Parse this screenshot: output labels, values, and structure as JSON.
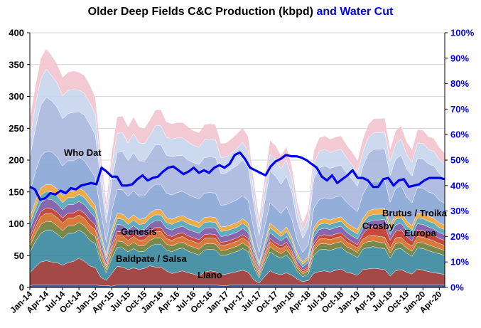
{
  "chart_data": {
    "type": "area",
    "title": "Older Deep Fields C&C Production (kbpd)",
    "title_suffix": "and Water Cut",
    "x_tick_labels": [
      "Jan-14",
      "Apr-14",
      "Jul-14",
      "Oct-14",
      "Jan-15",
      "Apr-15",
      "Jul-15",
      "Oct-15",
      "Jan-16",
      "Apr-16",
      "Jul-16",
      "Oct-16",
      "Jan-17",
      "Apr-17",
      "Jul-17",
      "Oct-17",
      "Jan-18",
      "Apr-18",
      "Jul-18",
      "Oct-18",
      "Jan-19",
      "Apr-19",
      "Jul-19",
      "Oct-19",
      "Jan-20",
      "Apr-20"
    ],
    "left_axis": {
      "ylim": [
        0,
        400
      ],
      "ticks": [
        0,
        50,
        100,
        150,
        200,
        250,
        300,
        350,
        400
      ]
    },
    "right_axis": {
      "ylim": [
        0,
        100
      ],
      "ticks": [
        "0%",
        "10%",
        "20%",
        "30%",
        "40%",
        "50%",
        "60%",
        "70%",
        "80%",
        "90%",
        "100%"
      ],
      "color": "#0000ee"
    },
    "grid": true,
    "stack_order_note": "bottom to top",
    "series": [
      {
        "name": "",
        "color": "#2e4a8c",
        "values": [
          3,
          4,
          4,
          4,
          4,
          4,
          4,
          4,
          4,
          4,
          4,
          4,
          4,
          3,
          3,
          2,
          4,
          4,
          4,
          4,
          4,
          4,
          4,
          4,
          4,
          4,
          4,
          4,
          4,
          4,
          4,
          4,
          4,
          4,
          4,
          3,
          3,
          4,
          4,
          4,
          4,
          4,
          4,
          4,
          4,
          4,
          4,
          4,
          4,
          4,
          4,
          4,
          4,
          4,
          4,
          4,
          4,
          4,
          4,
          4,
          4,
          4,
          4,
          4,
          4,
          4,
          4,
          4,
          4,
          4,
          4,
          4,
          4,
          4,
          4,
          4,
          4
        ]
      },
      {
        "name": "Llano",
        "color": "#9b3b38",
        "values": [
          20,
          28,
          36,
          38,
          36,
          35,
          31,
          35,
          37,
          42,
          37,
          30,
          27,
          13,
          8,
          20,
          29,
          28,
          24,
          27,
          24,
          26,
          30,
          28,
          28,
          22,
          18,
          20,
          22,
          19,
          17,
          14,
          20,
          22,
          21,
          17,
          18,
          19,
          21,
          23,
          20,
          8,
          3,
          13,
          22,
          18,
          16,
          19,
          15,
          9,
          5,
          7,
          18,
          21,
          22,
          20,
          23,
          25,
          20,
          18,
          15,
          24,
          25,
          26,
          25,
          24,
          14,
          22,
          24,
          20,
          17,
          25,
          23,
          21,
          19,
          18,
          16
        ]
      },
      {
        "name": "Baldpate / Salsa",
        "color": "#3d8aa0",
        "values": [
          32,
          40,
          45,
          48,
          50,
          45,
          42,
          46,
          44,
          44,
          44,
          40,
          38,
          25,
          12,
          24,
          30,
          30,
          28,
          30,
          28,
          27,
          30,
          36,
          36,
          33,
          34,
          36,
          36,
          34,
          33,
          33,
          35,
          34,
          34,
          30,
          30,
          31,
          32,
          34,
          32,
          20,
          8,
          20,
          30,
          28,
          26,
          28,
          22,
          12,
          8,
          10,
          28,
          34,
          34,
          34,
          34,
          34,
          32,
          30,
          28,
          32,
          34,
          34,
          33,
          33,
          28,
          34,
          33,
          30,
          28,
          33,
          34,
          33,
          32,
          31,
          30
        ]
      },
      {
        "name": "Genesis",
        "color": "#6e7f3a",
        "values": [
          10,
          12,
          14,
          14,
          13,
          13,
          12,
          12,
          12,
          12,
          12,
          12,
          11,
          8,
          5,
          8,
          10,
          10,
          9,
          10,
          9,
          9,
          10,
          10,
          10,
          9,
          9,
          9,
          9,
          9,
          9,
          9,
          9,
          9,
          9,
          8,
          8,
          8,
          8,
          9,
          8,
          6,
          4,
          6,
          8,
          8,
          7,
          8,
          7,
          5,
          4,
          5,
          8,
          9,
          9,
          9,
          9,
          9,
          8,
          8,
          8,
          8,
          9,
          9,
          9,
          9,
          8,
          9,
          9,
          8,
          8,
          9,
          9,
          9,
          9,
          8,
          8
        ]
      },
      {
        "name": "Europa",
        "color": "#d4702c",
        "values": [
          8,
          10,
          12,
          13,
          13,
          13,
          12,
          12,
          12,
          12,
          12,
          12,
          11,
          8,
          4,
          8,
          9,
          9,
          9,
          9,
          9,
          9,
          9,
          10,
          10,
          9,
          9,
          9,
          9,
          9,
          9,
          9,
          9,
          9,
          9,
          8,
          8,
          8,
          8,
          8,
          8,
          6,
          4,
          6,
          8,
          7,
          7,
          7,
          6,
          4,
          3,
          4,
          7,
          8,
          8,
          8,
          8,
          8,
          8,
          7,
          7,
          8,
          9,
          9,
          9,
          9,
          8,
          9,
          9,
          8,
          8,
          9,
          9,
          9,
          9,
          8,
          8
        ]
      },
      {
        "name": "Crosby",
        "color": "#c0392b",
        "values": [
          6,
          7,
          8,
          8,
          8,
          8,
          8,
          8,
          8,
          8,
          8,
          8,
          7,
          5,
          3,
          5,
          6,
          6,
          6,
          6,
          6,
          6,
          6,
          6,
          6,
          6,
          6,
          6,
          6,
          6,
          6,
          6,
          6,
          6,
          6,
          5,
          5,
          5,
          5,
          5,
          5,
          4,
          3,
          4,
          5,
          5,
          5,
          5,
          4,
          3,
          3,
          3,
          5,
          5,
          6,
          6,
          6,
          6,
          6,
          5,
          5,
          8,
          12,
          14,
          16,
          18,
          12,
          10,
          12,
          10,
          8,
          10,
          10,
          9,
          9,
          8,
          8
        ]
      },
      {
        "name": "",
        "color": "#7d5aa6",
        "values": [
          12,
          13,
          14,
          14,
          14,
          14,
          13,
          13,
          13,
          13,
          13,
          13,
          12,
          9,
          6,
          9,
          11,
          11,
          10,
          11,
          10,
          10,
          11,
          11,
          11,
          10,
          10,
          10,
          10,
          10,
          10,
          10,
          10,
          10,
          10,
          9,
          9,
          9,
          9,
          10,
          9,
          7,
          5,
          7,
          9,
          9,
          8,
          9,
          8,
          6,
          5,
          6,
          9,
          10,
          10,
          10,
          10,
          10,
          9,
          9,
          9,
          9,
          10,
          10,
          10,
          10,
          9,
          10,
          10,
          9,
          9,
          10,
          10,
          10,
          10,
          9,
          9
        ]
      },
      {
        "name": "",
        "color": "#56a5b8",
        "values": [
          10,
          11,
          12,
          12,
          12,
          12,
          11,
          11,
          11,
          11,
          11,
          11,
          10,
          8,
          5,
          8,
          9,
          9,
          9,
          9,
          9,
          9,
          9,
          9,
          9,
          9,
          9,
          9,
          9,
          9,
          9,
          9,
          9,
          9,
          9,
          8,
          8,
          8,
          8,
          8,
          8,
          6,
          4,
          6,
          8,
          8,
          7,
          8,
          7,
          5,
          4,
          5,
          8,
          8,
          8,
          8,
          8,
          8,
          8,
          8,
          8,
          8,
          9,
          9,
          9,
          9,
          8,
          9,
          9,
          8,
          8,
          9,
          9,
          9,
          9,
          8,
          8
        ]
      },
      {
        "name": "",
        "color": "#e9a53a",
        "values": [
          9,
          10,
          11,
          11,
          11,
          11,
          10,
          10,
          10,
          10,
          10,
          10,
          9,
          7,
          5,
          7,
          8,
          8,
          8,
          8,
          8,
          8,
          8,
          8,
          8,
          8,
          8,
          8,
          8,
          8,
          8,
          8,
          8,
          8,
          8,
          7,
          7,
          7,
          7,
          7,
          7,
          5,
          4,
          5,
          7,
          7,
          6,
          7,
          6,
          5,
          4,
          5,
          7,
          7,
          7,
          7,
          7,
          7,
          7,
          7,
          7,
          7,
          8,
          8,
          8,
          8,
          7,
          8,
          8,
          7,
          7,
          8,
          8,
          8,
          8,
          7,
          7
        ]
      },
      {
        "name": "Brutus / Troika",
        "color": "#8aa7d6",
        "values": [
          40,
          46,
          50,
          52,
          52,
          50,
          48,
          48,
          48,
          48,
          48,
          46,
          44,
          32,
          20,
          30,
          38,
          38,
          36,
          38,
          36,
          36,
          38,
          40,
          40,
          38,
          38,
          38,
          38,
          38,
          37,
          37,
          38,
          38,
          38,
          34,
          34,
          35,
          36,
          36,
          35,
          26,
          16,
          24,
          32,
          31,
          30,
          32,
          28,
          20,
          15,
          18,
          30,
          32,
          33,
          33,
          33,
          33,
          32,
          30,
          28,
          38,
          42,
          44,
          44,
          44,
          36,
          40,
          42,
          38,
          36,
          40,
          40,
          38,
          38,
          36,
          34
        ]
      },
      {
        "name": "Who Dat",
        "color": "#aab8de",
        "values": [
          55,
          68,
          80,
          85,
          80,
          78,
          74,
          74,
          76,
          72,
          72,
          70,
          66,
          48,
          30,
          46,
          58,
          60,
          56,
          60,
          56,
          54,
          56,
          62,
          62,
          60,
          60,
          58,
          56,
          54,
          54,
          54,
          56,
          56,
          56,
          50,
          50,
          52,
          54,
          56,
          52,
          40,
          26,
          38,
          50,
          50,
          46,
          48,
          42,
          30,
          22,
          28,
          46,
          50,
          50,
          48,
          48,
          48,
          46,
          44,
          40,
          44,
          48,
          50,
          50,
          50,
          42,
          46,
          48,
          44,
          42,
          46,
          46,
          44,
          44,
          42,
          40
        ]
      },
      {
        "name": "",
        "color": "#c9d6ee",
        "values": [
          30,
          36,
          42,
          44,
          40,
          38,
          36,
          36,
          36,
          34,
          34,
          34,
          32,
          24,
          16,
          24,
          30,
          30,
          28,
          30,
          28,
          28,
          28,
          30,
          30,
          28,
          28,
          28,
          28,
          28,
          27,
          27,
          28,
          28,
          28,
          25,
          25,
          26,
          27,
          28,
          26,
          20,
          14,
          20,
          26,
          26,
          24,
          25,
          22,
          16,
          12,
          14,
          24,
          26,
          26,
          25,
          25,
          25,
          24,
          23,
          21,
          23,
          25,
          26,
          26,
          26,
          22,
          24,
          25,
          23,
          22,
          24,
          24,
          23,
          23,
          22,
          21
        ]
      },
      {
        "name": "",
        "color": "#f2c6cf",
        "values": [
          30,
          31,
          32,
          32,
          31,
          30,
          29,
          29,
          29,
          28,
          28,
          28,
          27,
          22,
          17,
          22,
          26,
          26,
          25,
          26,
          25,
          24,
          24,
          25,
          25,
          24,
          24,
          24,
          24,
          24,
          23,
          23,
          24,
          24,
          24,
          22,
          22,
          22,
          23,
          23,
          22,
          18,
          14,
          18,
          22,
          22,
          21,
          21,
          19,
          15,
          12,
          14,
          20,
          21,
          21,
          21,
          21,
          21,
          20,
          20,
          19,
          20,
          21,
          22,
          22,
          22,
          19,
          21,
          21,
          20,
          19,
          21,
          21,
          20,
          20,
          19,
          18
        ]
      }
    ],
    "water_cut": {
      "name": "Water Cut",
      "color": "#0000ee",
      "values_percent": [
        39.5,
        38.5,
        34.5,
        35,
        37,
        36.5,
        38,
        37,
        39,
        38.5,
        40,
        40.5,
        41,
        40.5,
        47,
        45.5,
        43.5,
        43.5,
        40,
        40,
        40.5,
        42.5,
        44,
        42,
        43,
        43.5,
        45.5,
        47,
        47.5,
        46,
        44.5,
        45.5,
        47,
        45,
        46,
        45,
        47,
        48,
        47,
        48.5,
        52,
        53,
        50.5,
        47,
        46,
        45,
        44,
        47.5,
        49.5,
        50.5,
        52,
        51.5,
        51.5,
        51,
        50,
        48.5,
        47,
        43.5,
        42,
        44,
        41,
        42.5,
        44,
        46,
        43,
        43,
        42,
        39.5,
        39.5,
        42.5,
        43,
        40,
        42,
        42.5,
        39.5,
        40,
        40.5,
        42,
        43,
        43,
        43,
        42.5
      ]
    },
    "annotations": [
      {
        "text": "Who Dat"
      },
      {
        "text": "Genesis"
      },
      {
        "text": "Baldpate / Salsa"
      },
      {
        "text": "Llano"
      },
      {
        "text": "Crosby"
      },
      {
        "text": "Brutus / Troika"
      },
      {
        "text": "Europa"
      }
    ]
  }
}
